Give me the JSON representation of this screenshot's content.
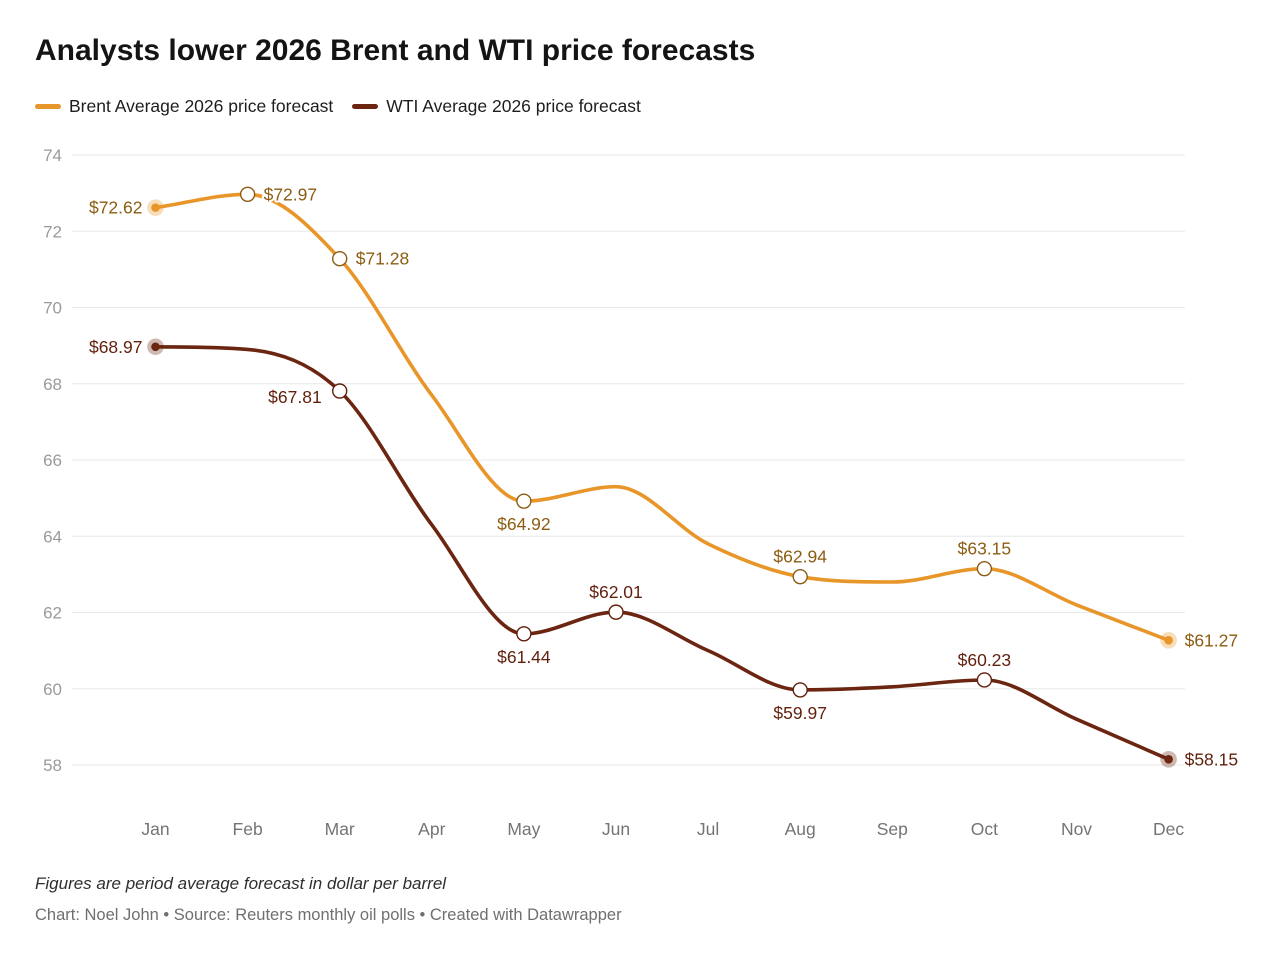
{
  "title": "Analysts lower 2026 Brent and WTI price forecasts",
  "legend": {
    "items": [
      {
        "label": "Brent Average 2026 price forecast",
        "color": "#E8962A"
      },
      {
        "label": "WTI Average 2026 price forecast",
        "color": "#6B2511"
      }
    ]
  },
  "footer": {
    "note": "Figures are period average forecast in dollar per barrel",
    "byline": "Chart: Noel John • Source: Reuters monthly oil polls • Created with Datawrapper"
  },
  "colors": {
    "grid": "#e8e8e8",
    "ytick": "#9a9a9a",
    "xtick": "#747474",
    "title": "#141414",
    "note": "#2e2e2e",
    "byline": "#6f6f6f"
  },
  "chart_data": {
    "type": "line",
    "x": [
      "Jan",
      "Feb",
      "Mar",
      "Apr",
      "May",
      "Jun",
      "Jul",
      "Aug",
      "Sep",
      "Oct",
      "Nov",
      "Dec"
    ],
    "ylim": [
      58,
      74
    ],
    "yticks": [
      58,
      60,
      62,
      64,
      66,
      68,
      70,
      72,
      74
    ],
    "grid": true,
    "legend_position": "top",
    "units": "dollar per barrel",
    "series": [
      {
        "name": "Brent Average 2026 price forecast",
        "color": "#E8962A",
        "label_color": "#8C5C12",
        "values": [
          72.62,
          72.97,
          71.28,
          67.7,
          64.92,
          65.3,
          63.8,
          62.94,
          62.8,
          63.15,
          62.2,
          61.27
        ],
        "estimated_months": [
          "Apr",
          "Jun",
          "Jul",
          "Sep",
          "Nov"
        ],
        "labeled_points": [
          {
            "month": "Jan",
            "value": 72.62,
            "text": "$72.62",
            "placement": "left",
            "marker": "dot"
          },
          {
            "month": "Feb",
            "value": 72.97,
            "text": "$72.97",
            "placement": "right",
            "marker": "ring"
          },
          {
            "month": "Mar",
            "value": 71.28,
            "text": "$71.28",
            "placement": "right",
            "marker": "ring"
          },
          {
            "month": "May",
            "value": 64.92,
            "text": "$64.92",
            "placement": "below",
            "marker": "ring"
          },
          {
            "month": "Aug",
            "value": 62.94,
            "text": "$62.94",
            "placement": "above",
            "marker": "ring"
          },
          {
            "month": "Oct",
            "value": 63.15,
            "text": "$63.15",
            "placement": "above",
            "marker": "ring"
          },
          {
            "month": "Dec",
            "value": 61.27,
            "text": "$61.27",
            "placement": "right",
            "marker": "dot"
          }
        ]
      },
      {
        "name": "WTI Average 2026 price forecast",
        "color": "#6B2511",
        "label_color": "#611F0C",
        "values": [
          68.97,
          68.9,
          67.81,
          64.3,
          61.44,
          62.01,
          61.0,
          59.97,
          60.05,
          60.23,
          59.2,
          58.15
        ],
        "estimated_months": [
          "Feb",
          "Apr",
          "Jul",
          "Sep",
          "Nov"
        ],
        "labeled_points": [
          {
            "month": "Jan",
            "value": 68.97,
            "text": "$68.97",
            "placement": "left",
            "marker": "dot"
          },
          {
            "month": "Mar",
            "value": 67.81,
            "text": "$67.81",
            "placement": "left-below",
            "marker": "ring"
          },
          {
            "month": "May",
            "value": 61.44,
            "text": "$61.44",
            "placement": "below",
            "marker": "ring"
          },
          {
            "month": "Jun",
            "value": 62.01,
            "text": "$62.01",
            "placement": "above",
            "marker": "ring"
          },
          {
            "month": "Aug",
            "value": 59.97,
            "text": "$59.97",
            "placement": "below",
            "marker": "ring"
          },
          {
            "month": "Oct",
            "value": 60.23,
            "text": "$60.23",
            "placement": "above",
            "marker": "ring"
          },
          {
            "month": "Dec",
            "value": 58.15,
            "text": "$58.15",
            "placement": "right",
            "marker": "dot"
          }
        ]
      }
    ]
  }
}
